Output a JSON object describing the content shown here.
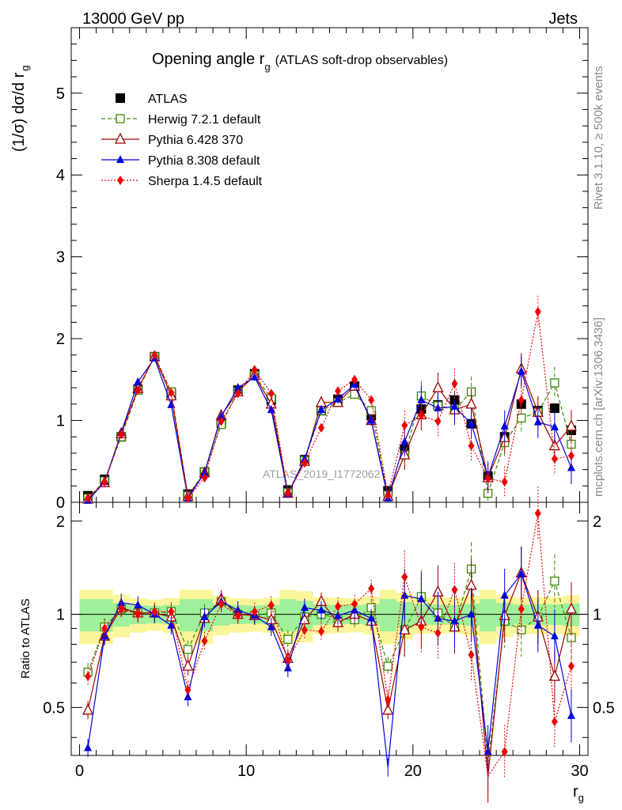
{
  "header": {
    "left": "13000 GeV pp",
    "right": "Jets"
  },
  "side_labels": {
    "rivet": "Rivet 3.1.10, ≥ 500k events",
    "mcplots": "mcplots.cern.ch [arXiv:1306.3436]"
  },
  "chart_data": {
    "type": "line",
    "title": "Opening angle r_g (ATLAS soft-drop observables)",
    "title_main": "Opening angle r",
    "title_sub": "g",
    "title_suffix": "(ATLAS soft-drop observables)",
    "watermark": "ATLAS_2019_I1772062",
    "ylabel_main": "(1/σ) dσ/d r",
    "ylabel_sub": "g",
    "xlabel_main": "r",
    "xlabel_sub": "g",
    "ratio_ylabel": "Ratio to ATLAS",
    "xlim": [
      -0.5,
      30.5
    ],
    "ylim_main": [
      0,
      5.8
    ],
    "ylim_ratio": [
      0.35,
      2.3
    ],
    "x_ticks": [
      "0",
      "10",
      "20",
      "30"
    ],
    "y_ticks_main": [
      "0",
      "1",
      "2",
      "3",
      "4",
      "5"
    ],
    "y_ticks_ratio": [
      "0.5",
      "1",
      "2"
    ],
    "x": [
      0.5,
      1.5,
      2.5,
      3.5,
      4.5,
      5.5,
      6.5,
      7.5,
      8.5,
      9.5,
      10.5,
      11.5,
      12.5,
      13.5,
      14.5,
      15.5,
      16.5,
      17.5,
      18.5,
      19.5,
      20.5,
      21.5,
      22.5,
      23.5,
      24.5,
      25.5,
      26.5,
      27.5,
      28.5,
      29.5
    ],
    "legend_position": "top-left",
    "series": [
      {
        "name": "ATLAS",
        "color": "#000000",
        "style": "data",
        "values": [
          0.08,
          0.28,
          0.8,
          1.38,
          1.78,
          1.33,
          0.1,
          0.37,
          0.97,
          1.37,
          1.57,
          1.25,
          0.15,
          0.52,
          1.12,
          1.26,
          1.42,
          1.06,
          0.14,
          0.65,
          1.14,
          1.19,
          1.25,
          0.96,
          0.32,
          0.8,
          1.2,
          1.12,
          1.15,
          0.88
        ]
      },
      {
        "name": "Herwig 7.2.1 default",
        "color": "#3a8a00",
        "style": "dashed",
        "marker": "open-square",
        "values": [
          0.05,
          0.26,
          0.8,
          1.37,
          1.78,
          1.35,
          0.08,
          0.37,
          0.95,
          1.35,
          1.55,
          1.27,
          0.12,
          0.51,
          1.12,
          1.22,
          1.32,
          1.12,
          0.09,
          0.58,
          1.3,
          1.18,
          1.13,
          1.35,
          0.11,
          0.73,
          1.03,
          1.1,
          1.46,
          0.71
        ],
        "ratio": [
          0.65,
          0.91,
          1.04,
          1.01,
          1.01,
          1.02,
          0.77,
          1.01,
          1.1,
          1.0,
          0.99,
          1.01,
          0.83,
          0.98,
          1.0,
          0.97,
          0.96,
          1.05,
          0.68,
          0.89,
          1.14,
          1.01,
          0.91,
          1.4,
          0.33,
          0.95,
          0.89,
          0.98,
          1.28,
          0.84
        ]
      },
      {
        "name": "Pythia 6.428 370",
        "color": "#a00000",
        "style": "solid",
        "marker": "open-triangle",
        "values": [
          0.04,
          0.24,
          0.84,
          1.39,
          1.78,
          1.3,
          0.07,
          0.36,
          1.06,
          1.35,
          1.55,
          1.2,
          0.11,
          0.5,
          1.22,
          1.22,
          1.42,
          1.0,
          0.07,
          0.58,
          1.07,
          1.4,
          1.13,
          1.2,
          0.3,
          0.79,
          1.63,
          1.1,
          0.69,
          0.93
        ],
        "ratio": [
          0.49,
          0.85,
          1.05,
          1.01,
          1.01,
          0.98,
          0.68,
          0.97,
          1.12,
          1.0,
          0.99,
          0.96,
          0.72,
          0.96,
          1.1,
          0.94,
          1.0,
          0.95,
          0.49,
          0.89,
          0.95,
          1.18,
          0.91,
          1.24,
          0.3,
          0.99,
          1.36,
          0.98,
          0.63,
          1.04
        ]
      },
      {
        "name": "Pythia 8.308 default",
        "color": "#0000e0",
        "style": "solid",
        "marker": "filled-triangle",
        "values": [
          0.02,
          0.25,
          0.85,
          1.47,
          1.76,
          1.19,
          0.05,
          0.36,
          1.05,
          1.4,
          1.53,
          1.13,
          0.1,
          0.53,
          1.13,
          1.26,
          1.44,
          1.0,
          0.05,
          0.74,
          1.25,
          1.15,
          1.17,
          0.96,
          0.31,
          0.93,
          1.6,
          0.98,
          0.92,
          0.42
        ],
        "ratio": [
          0.37,
          0.85,
          1.09,
          1.07,
          1.0,
          0.92,
          0.54,
          0.98,
          1.1,
          1.03,
          0.99,
          0.91,
          0.67,
          1.05,
          1.03,
          0.99,
          1.03,
          0.97,
          0.32,
          1.15,
          1.12,
          0.97,
          0.95,
          1.0,
          0.36,
          1.15,
          1.35,
          0.92,
          0.85,
          0.47
        ]
      },
      {
        "name": "Sherpa 1.4.5 default",
        "color": "#ee0000",
        "style": "dotted",
        "marker": "filled-diamond",
        "values": [
          0.05,
          0.25,
          0.83,
          1.37,
          1.8,
          1.34,
          0.05,
          0.3,
          0.99,
          1.33,
          1.62,
          1.33,
          0.11,
          0.48,
          0.91,
          1.36,
          1.5,
          1.25,
          0.09,
          0.94,
          1.06,
          0.99,
          1.45,
          0.69,
          0.29,
          0.25,
          1.25,
          2.33,
          0.53,
          0.57
        ],
        "ratio": [
          0.63,
          0.9,
          1.04,
          1.0,
          1.02,
          1.02,
          0.57,
          0.82,
          1.08,
          0.99,
          1.02,
          1.07,
          0.71,
          0.89,
          0.88,
          1.06,
          1.08,
          1.21,
          0.53,
          1.32,
          0.91,
          0.87,
          1.2,
          0.74,
          0.3,
          0.36,
          1.04,
          2.12,
          0.45,
          0.68
        ]
      }
    ]
  }
}
